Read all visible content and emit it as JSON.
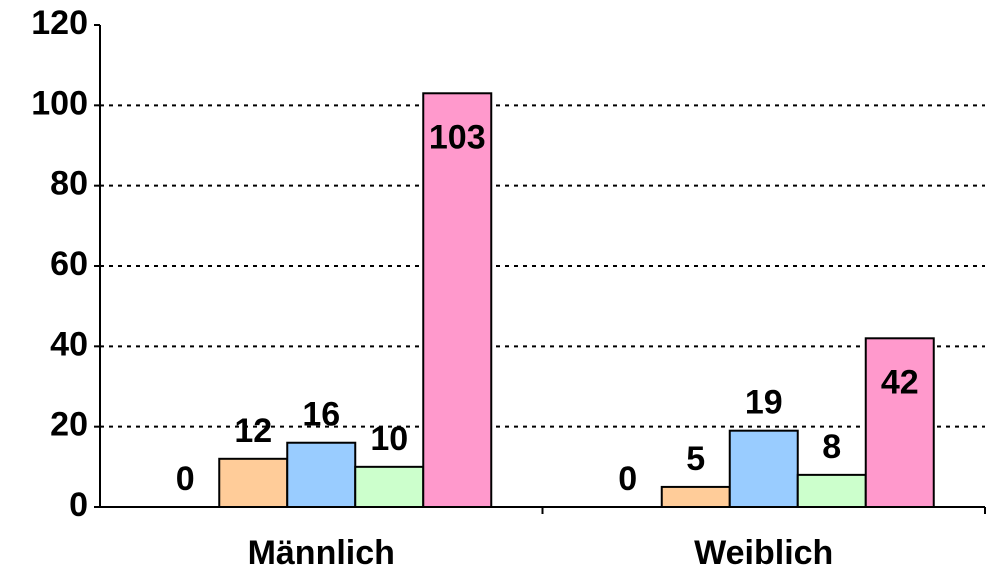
{
  "chart_data": {
    "type": "bar",
    "categories": [
      "Männlich",
      "Weiblich"
    ],
    "series": [
      {
        "color": "none",
        "values": [
          0,
          0
        ]
      },
      {
        "color": "#ffcc99",
        "values": [
          12,
          5
        ]
      },
      {
        "color": "#99ccff",
        "values": [
          16,
          19
        ]
      },
      {
        "color": "#ccffcc",
        "values": [
          10,
          8
        ]
      },
      {
        "color": "#ff99cc",
        "values": [
          103,
          42
        ]
      }
    ],
    "ylim": [
      0,
      120
    ],
    "yticks": [
      0,
      20,
      40,
      60,
      80,
      100,
      120
    ],
    "grid": true
  }
}
